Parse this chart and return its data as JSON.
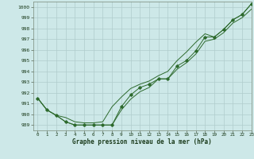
{
  "title": "Graphe pression niveau de la mer (hPa)",
  "background_color": "#cde8e8",
  "grid_color": "#b0cccc",
  "line_color": "#2d6a2d",
  "xlim": [
    -0.5,
    23
  ],
  "ylim": [
    988.5,
    1000.5
  ],
  "yticks": [
    989,
    990,
    991,
    992,
    993,
    994,
    995,
    996,
    997,
    998,
    999,
    1000
  ],
  "xticks": [
    0,
    1,
    2,
    3,
    4,
    5,
    6,
    7,
    8,
    9,
    10,
    11,
    12,
    13,
    14,
    15,
    16,
    17,
    18,
    19,
    20,
    21,
    22,
    23
  ],
  "series1": [
    991.5,
    990.4,
    989.9,
    989.3,
    989.0,
    989.0,
    989.0,
    989.0,
    989.0,
    990.7,
    991.8,
    992.5,
    992.8,
    993.3,
    993.3,
    994.5,
    995.0,
    995.9,
    997.2,
    997.2,
    997.9,
    998.8,
    999.3,
    1000.3
  ],
  "series2": [
    991.5,
    990.4,
    989.9,
    989.3,
    989.0,
    989.0,
    989.0,
    989.0,
    989.0,
    990.4,
    991.4,
    992.1,
    992.5,
    993.3,
    993.3,
    994.2,
    994.8,
    995.6,
    996.8,
    997.0,
    997.6,
    998.5,
    999.0,
    999.8
  ],
  "series3": [
    991.5,
    990.4,
    989.9,
    989.7,
    989.3,
    989.2,
    989.2,
    989.3,
    990.7,
    991.6,
    992.4,
    992.8,
    993.1,
    993.6,
    994.0,
    995.0,
    995.8,
    996.7,
    997.5,
    997.2,
    997.9,
    998.8,
    999.3,
    1000.3
  ],
  "ylabel_fontsize": 5.0,
  "xlabel_fontsize": 5.0,
  "title_fontsize": 5.5
}
